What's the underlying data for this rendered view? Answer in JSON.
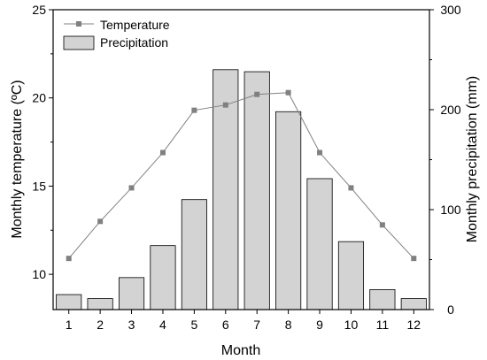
{
  "chart_data": {
    "type": "bar",
    "xlabel": "Month",
    "ylabel_left": "Monthly temperature (ºC)",
    "ylabel_right": "Monthly precipitation (mm)",
    "categories": [
      "1",
      "2",
      "3",
      "4",
      "5",
      "6",
      "7",
      "8",
      "9",
      "10",
      "11",
      "12"
    ],
    "series": [
      {
        "name": "Temperature",
        "kind": "line",
        "axis": "left",
        "marker": "square",
        "color": "#808080",
        "values": [
          10.9,
          13.0,
          14.9,
          16.9,
          19.3,
          19.6,
          20.2,
          20.3,
          16.9,
          14.9,
          12.8,
          10.9
        ]
      },
      {
        "name": "Precipitation",
        "kind": "bar",
        "axis": "right",
        "fill": "#d3d3d3",
        "stroke": "#000000",
        "values": [
          15,
          11,
          32,
          64,
          110,
          240,
          238,
          198,
          131,
          68,
          20,
          11
        ]
      }
    ],
    "ylim_left": [
      8,
      25
    ],
    "ylim_right": [
      0,
      300
    ],
    "yticks_left": [
      10,
      15,
      20,
      25
    ],
    "yticks_right": [
      0,
      100,
      200,
      300
    ],
    "grid": false,
    "legend": "top-left"
  }
}
